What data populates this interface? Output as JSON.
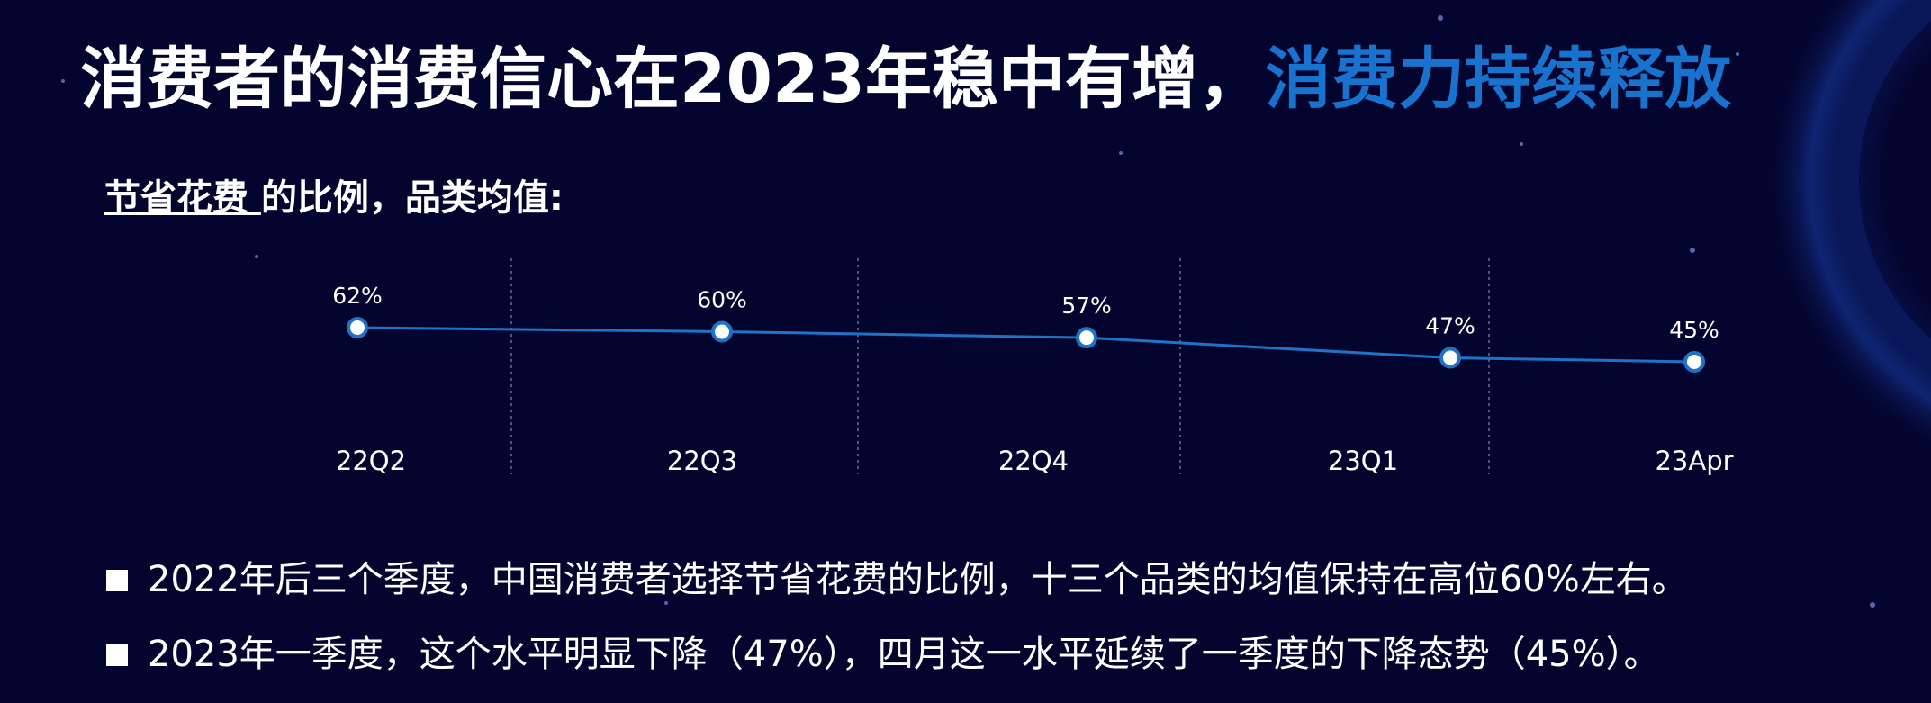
{
  "chart_data": {
    "type": "line",
    "title": "消费者的消费信心在2023年稳中有增，",
    "title_highlight": "消费力持续释放",
    "subtitle_highlight": "节省花费 ",
    "subtitle": "的比例，品类均值:",
    "categories": [
      "22Q2",
      "22Q3",
      "22Q4",
      "23Q1",
      "23Apr"
    ],
    "series": [
      {
        "color": "#1e73c8",
        "values": [
          62,
          60,
          57,
          47,
          45
        ],
        "value_labels": [
          "62%",
          "60%",
          "57%",
          "47%",
          "45%"
        ]
      }
    ],
    "notes": [
      "2022年后三个季度，中国消费者选择节省花费的比例，十三个品类的均值保持在高位60%左右。",
      "2023年一季度，这个水平明显下降（47%），四月这一水平延续了一季度的下降态势（45%）。"
    ]
  }
}
